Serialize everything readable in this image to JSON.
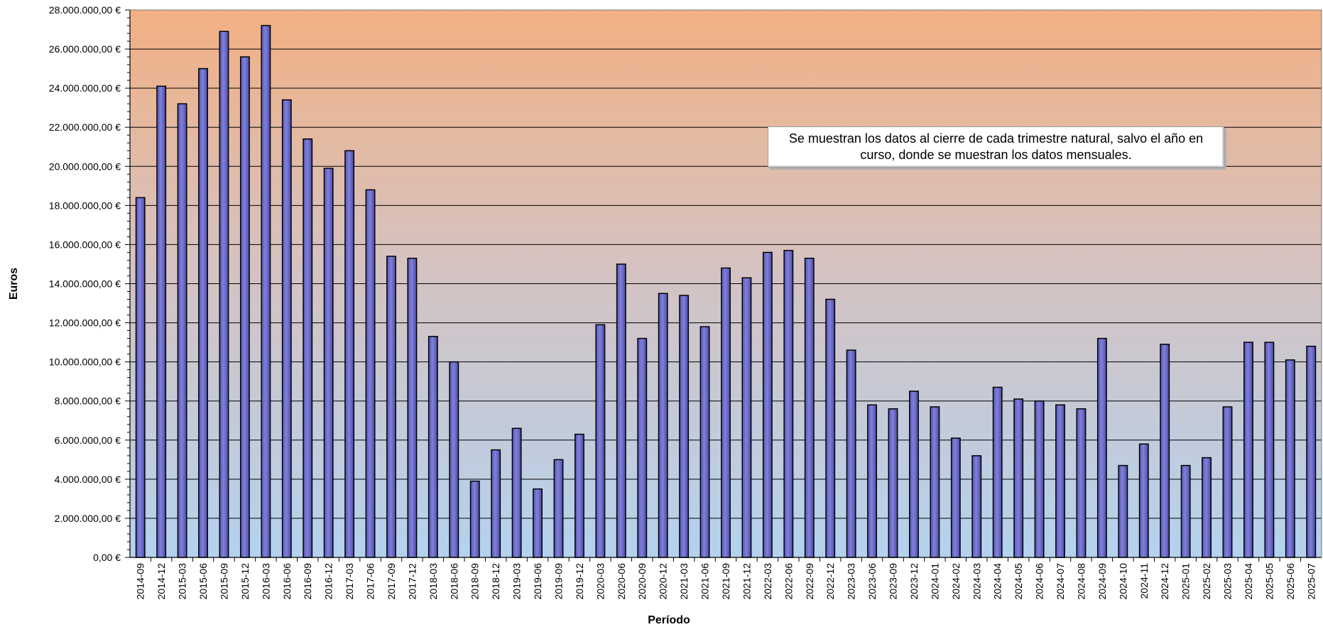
{
  "chart_data": {
    "type": "bar",
    "xlabel": "Período",
    "ylabel": "Euros",
    "ylim": [
      0,
      28000000
    ],
    "y_tick_step": 2000000,
    "y_tick_labels": [
      "0,00 €",
      "2.000.000,00 €",
      "4.000.000,00 €",
      "6.000.000,00 €",
      "8.000.000,00 €",
      "10.000.000,00 €",
      "12.000.000,00 €",
      "14.000.000,00 €",
      "16.000.000,00 €",
      "18.000.000,00 €",
      "20.000.000,00 €",
      "22.000.000,00 €",
      "24.000.000,00 €",
      "26.000.000,00 €",
      "28.000.000,00 €"
    ],
    "grid": true,
    "annotation": "Se muestran los datos al cierre de cada trimestre natural, salvo el año en curso, donde se muestran los datos mensuales.",
    "colors": {
      "bar_fill": "#8181d9",
      "bar_stroke": "#000000",
      "background_top": "#f2b083",
      "background_bottom": "#b4d2ee",
      "grid": "#000000"
    },
    "categories": [
      "2014-09",
      "2014-12",
      "2015-03",
      "2015-06",
      "2015-09",
      "2015-12",
      "2016-03",
      "2016-06",
      "2016-09",
      "2016-12",
      "2017-03",
      "2017-06",
      "2017-09",
      "2017-12",
      "2018-03",
      "2018-06",
      "2018-09",
      "2018-12",
      "2019-03",
      "2019-06",
      "2019-09",
      "2019-12",
      "2020-03",
      "2020-06",
      "2020-09",
      "2020-12",
      "2021-03",
      "2021-06",
      "2021-09",
      "2021-12",
      "2022-03",
      "2022-06",
      "2022-09",
      "2022-12",
      "2023-03",
      "2023-06",
      "2023-09",
      "2023-12",
      "2024-01",
      "2024-02",
      "2024-03",
      "2024-04",
      "2024-05",
      "2024-06",
      "2024-07",
      "2024-08",
      "2024-09",
      "2024-10",
      "2024-11",
      "2024-12",
      "2025-01",
      "2025-02",
      "2025-03",
      "2025-04",
      "2025-05",
      "2025-06",
      "2025-07"
    ],
    "values": [
      18400000,
      24100000,
      23200000,
      25000000,
      26900000,
      25600000,
      27200000,
      23400000,
      21400000,
      19900000,
      20800000,
      18800000,
      15400000,
      15300000,
      11300000,
      10000000,
      3900000,
      5500000,
      6600000,
      3500000,
      5000000,
      6300000,
      11900000,
      15000000,
      11200000,
      13500000,
      13400000,
      11800000,
      14800000,
      14300000,
      15600000,
      15700000,
      15300000,
      13200000,
      10600000,
      7800000,
      7600000,
      8500000,
      7700000,
      6100000,
      5200000,
      8700000,
      8100000,
      8000000,
      7800000,
      7600000,
      11200000,
      4700000,
      5800000,
      10900000,
      4700000,
      5100000,
      7700000,
      11000000,
      11000000,
      10100000,
      10800000
    ]
  }
}
